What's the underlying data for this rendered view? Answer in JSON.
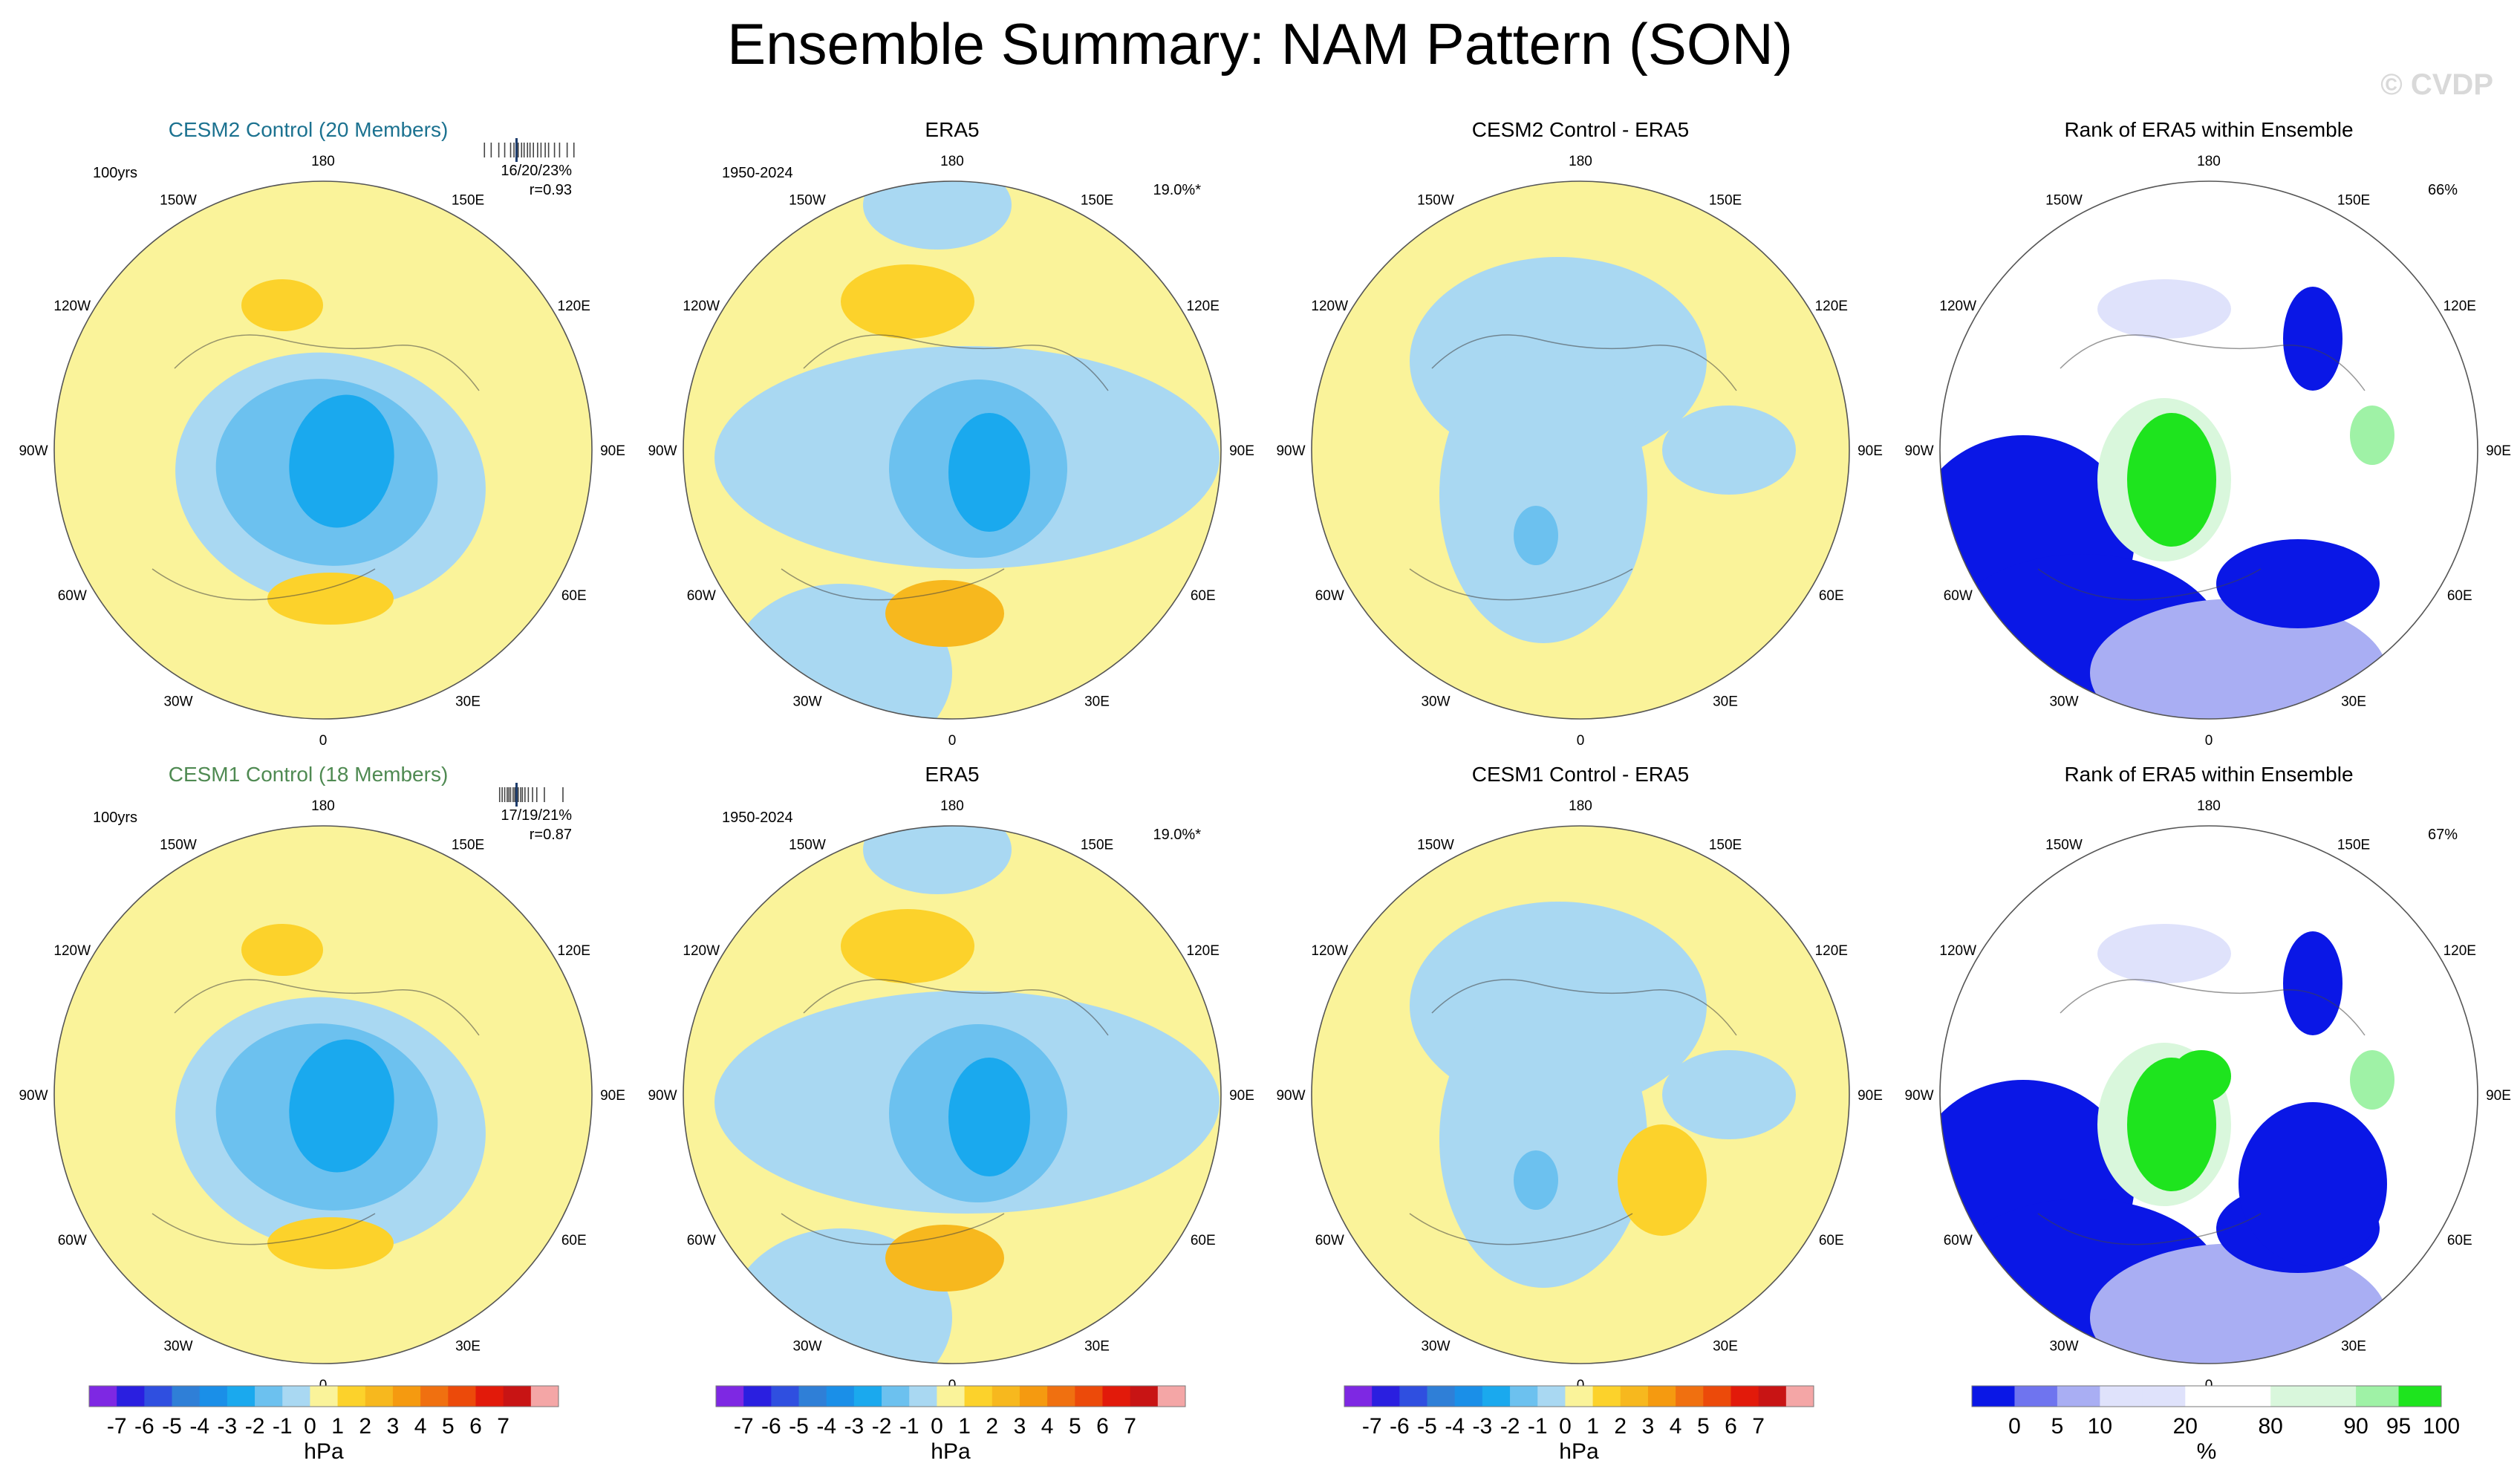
{
  "title": "Ensemble Summary: NAM Pattern (SON)",
  "watermark": "© CVDP",
  "colors": {
    "ocean_land_pos": "#faf39a",
    "neg1": "#a9d8f2",
    "neg2": "#6cc1ef",
    "neg3": "#1aa9ee",
    "neg4": "#2f7fd7",
    "pos1": "#fcd22b",
    "pos2": "#f7b81e",
    "rank_blue_dark": "#0a17e6",
    "rank_blue_mid": "#6f74ef",
    "rank_blue_light": "#a9aef3",
    "rank_blue_pale": "#dfe2fb",
    "rank_green_pale": "#d9f7dc",
    "rank_green_light": "#9ff2a6",
    "rank_green": "#1ee41e",
    "cesm2_title": "#1c7290",
    "cesm1_title": "#4f8a52"
  },
  "longitude_labels": [
    "180",
    "150E",
    "120E",
    "90E",
    "60E",
    "30E",
    "0",
    "30W",
    "60W",
    "90W",
    "120W",
    "150W"
  ],
  "rows": [
    {
      "panels": [
        {
          "title": "CESM2 Control (20 Members)",
          "left_note": "100yrs",
          "right_note1": "16/20/23%",
          "right_note2": "r=0.93",
          "type": "model"
        },
        {
          "title": "ERA5",
          "left_note": "1950-2024",
          "right_note1": "19.0%*",
          "right_note2": "",
          "type": "obs"
        },
        {
          "title": "CESM2 Control - ERA5",
          "left_note": "",
          "right_note1": "",
          "right_note2": "",
          "type": "diff"
        },
        {
          "title": "Rank of ERA5 within Ensemble",
          "left_note": "",
          "right_note1": "66%",
          "right_note2": "",
          "type": "rank"
        }
      ]
    },
    {
      "panels": [
        {
          "title": "CESM1 Control (18 Members)",
          "left_note": "100yrs",
          "right_note1": "17/19/21%",
          "right_note2": "r=0.87",
          "type": "model"
        },
        {
          "title": "ERA5",
          "left_note": "1950-2024",
          "right_note1": "19.0%*",
          "right_note2": "",
          "type": "obs"
        },
        {
          "title": "CESM1 Control - ERA5",
          "left_note": "",
          "right_note1": "",
          "right_note2": "",
          "type": "diff"
        },
        {
          "title": "Rank of ERA5 within Ensemble",
          "left_note": "",
          "right_note1": "67%",
          "right_note2": "",
          "type": "rank"
        }
      ]
    }
  ],
  "chart_data": [
    {
      "type": "colorbar",
      "label": "hPa",
      "tick_labels": [
        "-7",
        "-6",
        "-5",
        "-4",
        "-3",
        "-2",
        "-1",
        "0",
        "1",
        "2",
        "3",
        "4",
        "5",
        "6",
        "7"
      ],
      "colors": [
        "#7e28e3",
        "#2a1fe0",
        "#2f4fe0",
        "#2f7fd7",
        "#1a8fe8",
        "#1aa9ee",
        "#6cc1ef",
        "#a9d8f2",
        "#faf39a",
        "#fcd22b",
        "#f7b81e",
        "#f59a10",
        "#f07010",
        "#ec4a0a",
        "#e21a0a",
        "#c81414",
        "#f4a6a6"
      ]
    },
    {
      "type": "colorbar",
      "label": "%",
      "tick_labels": [
        "0",
        "5",
        "10",
        "20",
        "80",
        "90",
        "95",
        "100"
      ],
      "tick_positions": [
        1,
        2,
        3,
        5,
        7,
        9,
        10,
        11
      ],
      "colors": [
        "#0a17e6",
        "#6f74ef",
        "#a9aef3",
        "#dfe2fb",
        "#dfe2fb",
        "#ffffff",
        "#ffffff",
        "#d9f7dc",
        "#d9f7dc",
        "#9ff2a6",
        "#1ee41e"
      ]
    },
    {
      "type": "ensemble_ticks",
      "panel": "CESM2 Control (20 Members)",
      "values": [
        15.2,
        16.0,
        16.9,
        17.6,
        18.3,
        18.7,
        19.2,
        19.6,
        19.9,
        20.3,
        20.6,
        21.0,
        21.5,
        21.9,
        22.4,
        22.8,
        23.5,
        24.1,
        25.0,
        25.8
      ],
      "highlight": 19.0
    },
    {
      "type": "ensemble_ticks",
      "panel": "CESM1 Control (18 Members)",
      "values": [
        17.0,
        17.3,
        17.6,
        17.9,
        18.1,
        18.3,
        18.6,
        18.8,
        19.0,
        19.2,
        19.5,
        19.7,
        20.0,
        20.4,
        20.9,
        21.4,
        22.3,
        24.5
      ],
      "highlight": 19.0
    }
  ]
}
